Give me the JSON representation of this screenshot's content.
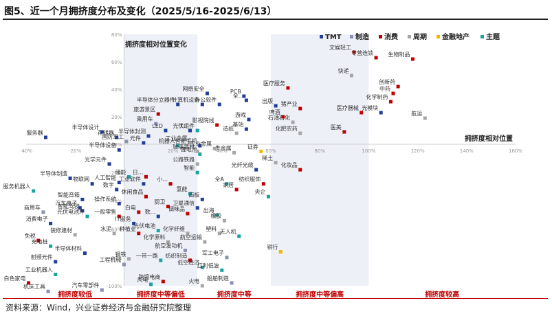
{
  "title": "图5、近一个月拥挤度分布及变化（2025/5/16-2025/6/13）",
  "source": "资料来源：Wind，兴业证券经济与金融研究院整理",
  "colors": {
    "TMT": "#1f3d99",
    "制造": "#8a8fb8",
    "消费": "#c00000",
    "周期": "#a6a6a6",
    "金融地产": "#f2b800",
    "主题": "#1aa3a3"
  },
  "chart_data": {
    "type": "scatter",
    "title": "拥挤度相对位置变化",
    "xlabel": "拥挤度相对位置",
    "ylabel": "",
    "xlim": [
      -40,
      160
    ],
    "ylim": [
      -100,
      80
    ],
    "xticks": [
      -40,
      -20,
      0,
      20,
      40,
      60,
      80,
      100,
      120,
      140,
      160
    ],
    "yticks": [
      -100,
      -80,
      -60,
      -40,
      -20,
      0,
      20,
      40,
      60,
      80
    ],
    "tick_format": "%",
    "grid": false,
    "legend": "top-right",
    "legend_items": [
      "TMT",
      "制造",
      "消费",
      "周期",
      "金融地产",
      "主题"
    ],
    "bands": [
      {
        "label": "拥挤度较低",
        "from": -40,
        "to": 0,
        "shade": false
      },
      {
        "label": "拥挤度中等偏低",
        "from": 0,
        "to": 30,
        "shade": true
      },
      {
        "label": "拥挤度中等",
        "from": 30,
        "to": 60,
        "shade": false
      },
      {
        "label": "拥挤度中等偏高",
        "from": 60,
        "to": 100,
        "shade": true
      },
      {
        "label": "拥挤度较高",
        "from": 100,
        "to": 160,
        "shade": false
      }
    ],
    "points": [
      {
        "name": "文娱轻工",
        "x": 94,
        "y": 67,
        "g": "消费"
      },
      {
        "name": "快递",
        "x": 93,
        "y": 50,
        "g": "周期"
      },
      {
        "name": "专营连锁",
        "x": 103,
        "y": 63,
        "g": "消费"
      },
      {
        "name": "生物制品",
        "x": 118,
        "y": 62,
        "g": "消费"
      },
      {
        "name": "创新药",
        "x": 112,
        "y": 42,
        "g": "消费"
      },
      {
        "name": "中药",
        "x": 110,
        "y": 37,
        "g": "消费"
      },
      {
        "name": "化学制药",
        "x": 109,
        "y": 31,
        "g": "消费"
      },
      {
        "name": "光模块",
        "x": 105,
        "y": 23,
        "g": "TMT"
      },
      {
        "name": "航运",
        "x": 123,
        "y": 19,
        "g": "周期"
      },
      {
        "name": "医疗器械",
        "x": 97,
        "y": 23,
        "g": "消费"
      },
      {
        "name": "医疗服务",
        "x": 67,
        "y": 41,
        "g": "消费"
      },
      {
        "name": "PCB",
        "x": 49,
        "y": 35,
        "g": "TMT"
      },
      {
        "name": "全...",
        "x": 50,
        "y": 32,
        "g": "TMT"
      },
      {
        "name": "出版",
        "x": 62,
        "y": 28,
        "g": "TMT"
      },
      {
        "name": "猪产业",
        "x": 72,
        "y": 26,
        "g": "消费"
      },
      {
        "name": "啤酒",
        "x": 65,
        "y": 20,
        "g": "消费"
      },
      {
        "name": "石油石化",
        "x": 69,
        "y": 16,
        "g": "周期"
      },
      {
        "name": "化肥农药",
        "x": 72,
        "y": 8,
        "g": "周期"
      },
      {
        "name": "医美",
        "x": 90,
        "y": 9,
        "g": "消费"
      },
      {
        "name": "网络安全",
        "x": 34,
        "y": 37,
        "g": "TMT"
      },
      {
        "name": "半导体分立器件",
        "x": 22,
        "y": 29,
        "g": "TMT"
      },
      {
        "name": "计算机设备",
        "x": 32,
        "y": 29,
        "g": "TMT"
      },
      {
        "name": "办公软件",
        "x": 39,
        "y": 29,
        "g": "TMT"
      },
      {
        "name": "旅游景区",
        "x": 14,
        "y": 22,
        "g": "消费"
      },
      {
        "name": "游戏",
        "x": 51,
        "y": 18,
        "g": "TMT"
      },
      {
        "name": "影视院线",
        "x": 38,
        "y": 14,
        "g": "消费"
      },
      {
        "name": "基站",
        "x": 50,
        "y": 11,
        "g": "TMT"
      },
      {
        "name": "造纸",
        "x": 46,
        "y": 8,
        "g": "周期"
      },
      {
        "name": "乘用车",
        "x": 13,
        "y": 15,
        "g": "制造"
      },
      {
        "name": "LED",
        "x": 17,
        "y": 10,
        "g": "TMT"
      },
      {
        "name": "T...",
        "x": 27,
        "y": 10,
        "g": "TMT"
      },
      {
        "name": "光伏组件",
        "x": 30,
        "y": 10,
        "g": "主题"
      },
      {
        "name": "服务器",
        "x": -32,
        "y": 5,
        "g": "TMT"
      },
      {
        "name": "半导体设计",
        "x": -9,
        "y": 9,
        "g": "TMT"
      },
      {
        "name": "存储器",
        "x": -3,
        "y": 5,
        "g": "TMT"
      },
      {
        "name": "半导体封测",
        "x": 10,
        "y": 6,
        "g": "TMT"
      },
      {
        "name": "国防军工",
        "x": 1,
        "y": 2,
        "g": "制造"
      },
      {
        "name": "元件",
        "x": 8,
        "y": 1,
        "g": "TMT"
      },
      {
        "name": "工业金属",
        "x": 27,
        "y": 1,
        "g": "周期"
      },
      {
        "name": "智能手机",
        "x": 31,
        "y": -1,
        "g": "TMT"
      },
      {
        "name": "机器人",
        "x": 22,
        "y": -1,
        "g": "主题"
      },
      {
        "name": "半导体设备",
        "x": -2,
        "y": -4,
        "g": "TMT"
      },
      {
        "name": "锂电池",
        "x": 31,
        "y": -7,
        "g": "主题"
      },
      {
        "name": "贵金属",
        "x": 45,
        "y": -6,
        "g": "周期"
      },
      {
        "name": "玻璃建材",
        "x": 30,
        "y": -5,
        "g": "周期"
      },
      {
        "name": "工业金属",
        "x": 37,
        "y": -3,
        "g": "周期"
      },
      {
        "name": "证券",
        "x": 56,
        "y": -5,
        "g": "金融地产"
      },
      {
        "name": "光学元件",
        "x": -6,
        "y": -14,
        "g": "TMT"
      },
      {
        "name": "公路铁路",
        "x": 30,
        "y": -14,
        "g": "周期"
      },
      {
        "name": "智能",
        "x": 30,
        "y": -20,
        "g": "主题"
      },
      {
        "name": "光纤光缆",
        "x": 54,
        "y": -18,
        "g": "TMT"
      },
      {
        "name": "稀土",
        "x": 62,
        "y": -13,
        "g": "周期"
      },
      {
        "name": "化妆品",
        "x": 72,
        "y": -18,
        "g": "消费"
      },
      {
        "name": "纺织服饰",
        "x": 57,
        "y": -28,
        "g": "消费"
      },
      {
        "name": "半导体制造",
        "x": -22,
        "y": -24,
        "g": "TMT"
      },
      {
        "name": "物联网",
        "x": -13,
        "y": -28,
        "g": "TMT"
      },
      {
        "name": "储能",
        "x": 2,
        "y": -23,
        "g": "主题"
      },
      {
        "name": "日...",
        "x": 9,
        "y": -23,
        "g": "消费"
      },
      {
        "name": "工业软件",
        "x": 8,
        "y": -28,
        "g": "TMT"
      },
      {
        "name": "小...",
        "x": 19,
        "y": -28,
        "g": "消费"
      },
      {
        "name": "全A",
        "x": 42,
        "y": -28,
        "g": "主题"
      },
      {
        "name": "家居",
        "x": 46,
        "y": -32,
        "g": "消费"
      },
      {
        "name": "央企",
        "x": 59,
        "y": -37,
        "g": "主题"
      },
      {
        "name": "服务机器人",
        "x": -37,
        "y": -33,
        "g": "主题"
      },
      {
        "name": "智能音箱",
        "x": -17,
        "y": -39,
        "g": "TMT"
      },
      {
        "name": "数字",
        "x": -3,
        "y": -32,
        "g": "TMT"
      },
      {
        "name": "人工智能",
        "x": -2,
        "y": -27,
        "g": "TMT"
      },
      {
        "name": "休闲食品",
        "x": 9,
        "y": -37,
        "g": "消费"
      },
      {
        "name": "氢能",
        "x": 27,
        "y": -35,
        "g": "主题"
      },
      {
        "name": "面板",
        "x": 32,
        "y": -39,
        "g": "TMT"
      },
      {
        "name": "汽车电子",
        "x": -18,
        "y": -45,
        "g": "TMT"
      },
      {
        "name": "操作系统",
        "x": -2,
        "y": -42,
        "g": "TMT"
      },
      {
        "name": "卫星通信",
        "x": 30,
        "y": -45,
        "g": "TMT"
      },
      {
        "name": "厨卫",
        "x": 18,
        "y": -44,
        "g": "消费"
      },
      {
        "name": "智能驾驶",
        "x": -17,
        "y": -47,
        "g": "TMT"
      },
      {
        "name": "商用车",
        "x": -33,
        "y": -48,
        "g": "制造"
      },
      {
        "name": "光伏电池片",
        "x": -15,
        "y": -51,
        "g": "主题"
      },
      {
        "name": "白电",
        "x": 6,
        "y": -48,
        "g": "消费"
      },
      {
        "name": "调味品",
        "x": 26,
        "y": -49,
        "g": "消费"
      },
      {
        "name": "一般零售",
        "x": -2,
        "y": -51,
        "g": "消费"
      },
      {
        "name": "数...",
        "x": 14,
        "y": -51,
        "g": "TMT"
      },
      {
        "name": "出海",
        "x": 38,
        "y": -50,
        "g": "主题"
      },
      {
        "name": "橡胶",
        "x": 41,
        "y": -54,
        "g": "周期"
      },
      {
        "name": "消费电子",
        "x": -30,
        "y": -56,
        "g": "TMT"
      },
      {
        "name": "IT服务",
        "x": 4,
        "y": -56,
        "g": "TMT"
      },
      {
        "name": "水泥",
        "x": -4,
        "y": -63,
        "g": "周期"
      },
      {
        "name": "种植业",
        "x": 6,
        "y": -63,
        "g": "消费"
      },
      {
        "name": "光伏电池",
        "x": 14,
        "y": -61,
        "g": "主题"
      },
      {
        "name": "装修建材",
        "x": -20,
        "y": -64,
        "g": "周期"
      },
      {
        "name": "化学纤维",
        "x": 26,
        "y": -63,
        "g": "周期"
      },
      {
        "name": "塑料",
        "x": 39,
        "y": -63,
        "g": "周期"
      },
      {
        "name": "无人机",
        "x": 47,
        "y": -65,
        "g": "主题"
      },
      {
        "name": "免税",
        "x": -35,
        "y": -68,
        "g": "消费"
      },
      {
        "name": "充电桩",
        "x": -30,
        "y": -72,
        "g": "主题"
      },
      {
        "name": "化学原料",
        "x": 18,
        "y": -69,
        "g": "周期"
      },
      {
        "name": "航空运输",
        "x": 33,
        "y": -69,
        "g": "周期"
      },
      {
        "name": "银行",
        "x": 64,
        "y": -76,
        "g": "金融地产"
      },
      {
        "name": "半导体材料",
        "x": -16,
        "y": -77,
        "g": "TMT"
      },
      {
        "name": "航空发动机",
        "x": 25,
        "y": -75,
        "g": "制造"
      },
      {
        "name": "钢铁",
        "x": 2,
        "y": -81,
        "g": "周期"
      },
      {
        "name": "射频元件",
        "x": -28,
        "y": -83,
        "g": "TMT"
      },
      {
        "name": "工程机械",
        "x": 0,
        "y": -85,
        "g": "制造"
      },
      {
        "name": "一带一路",
        "x": 15,
        "y": -82,
        "g": "主题"
      },
      {
        "name": "纺织制造",
        "x": 27,
        "y": -82,
        "g": "消费"
      },
      {
        "name": "军工电子",
        "x": 42,
        "y": -80,
        "g": "制造"
      },
      {
        "name": "低空经济",
        "x": 32,
        "y": -87,
        "g": "主题"
      },
      {
        "name": "红利低波",
        "x": 40,
        "y": -89,
        "g": "主题"
      },
      {
        "name": "工业机器人",
        "x": -28,
        "y": -92,
        "g": "主题"
      },
      {
        "name": "白色家电",
        "x": -39,
        "y": -98,
        "g": "消费"
      },
      {
        "name": "跨境电商",
        "x": 16,
        "y": -97,
        "g": "消费"
      },
      {
        "name": "风电",
        "x": 11,
        "y": -99,
        "g": "主题"
      },
      {
        "name": "火电",
        "x": 32,
        "y": -100,
        "g": "周期"
      },
      {
        "name": "船舶制造",
        "x": 44,
        "y": -98,
        "g": "制造"
      },
      {
        "name": "机床工具",
        "x": -31,
        "y": -104,
        "g": "制造"
      },
      {
        "name": "汽车零部件",
        "x": -9,
        "y": -103,
        "g": "制造"
      }
    ]
  }
}
